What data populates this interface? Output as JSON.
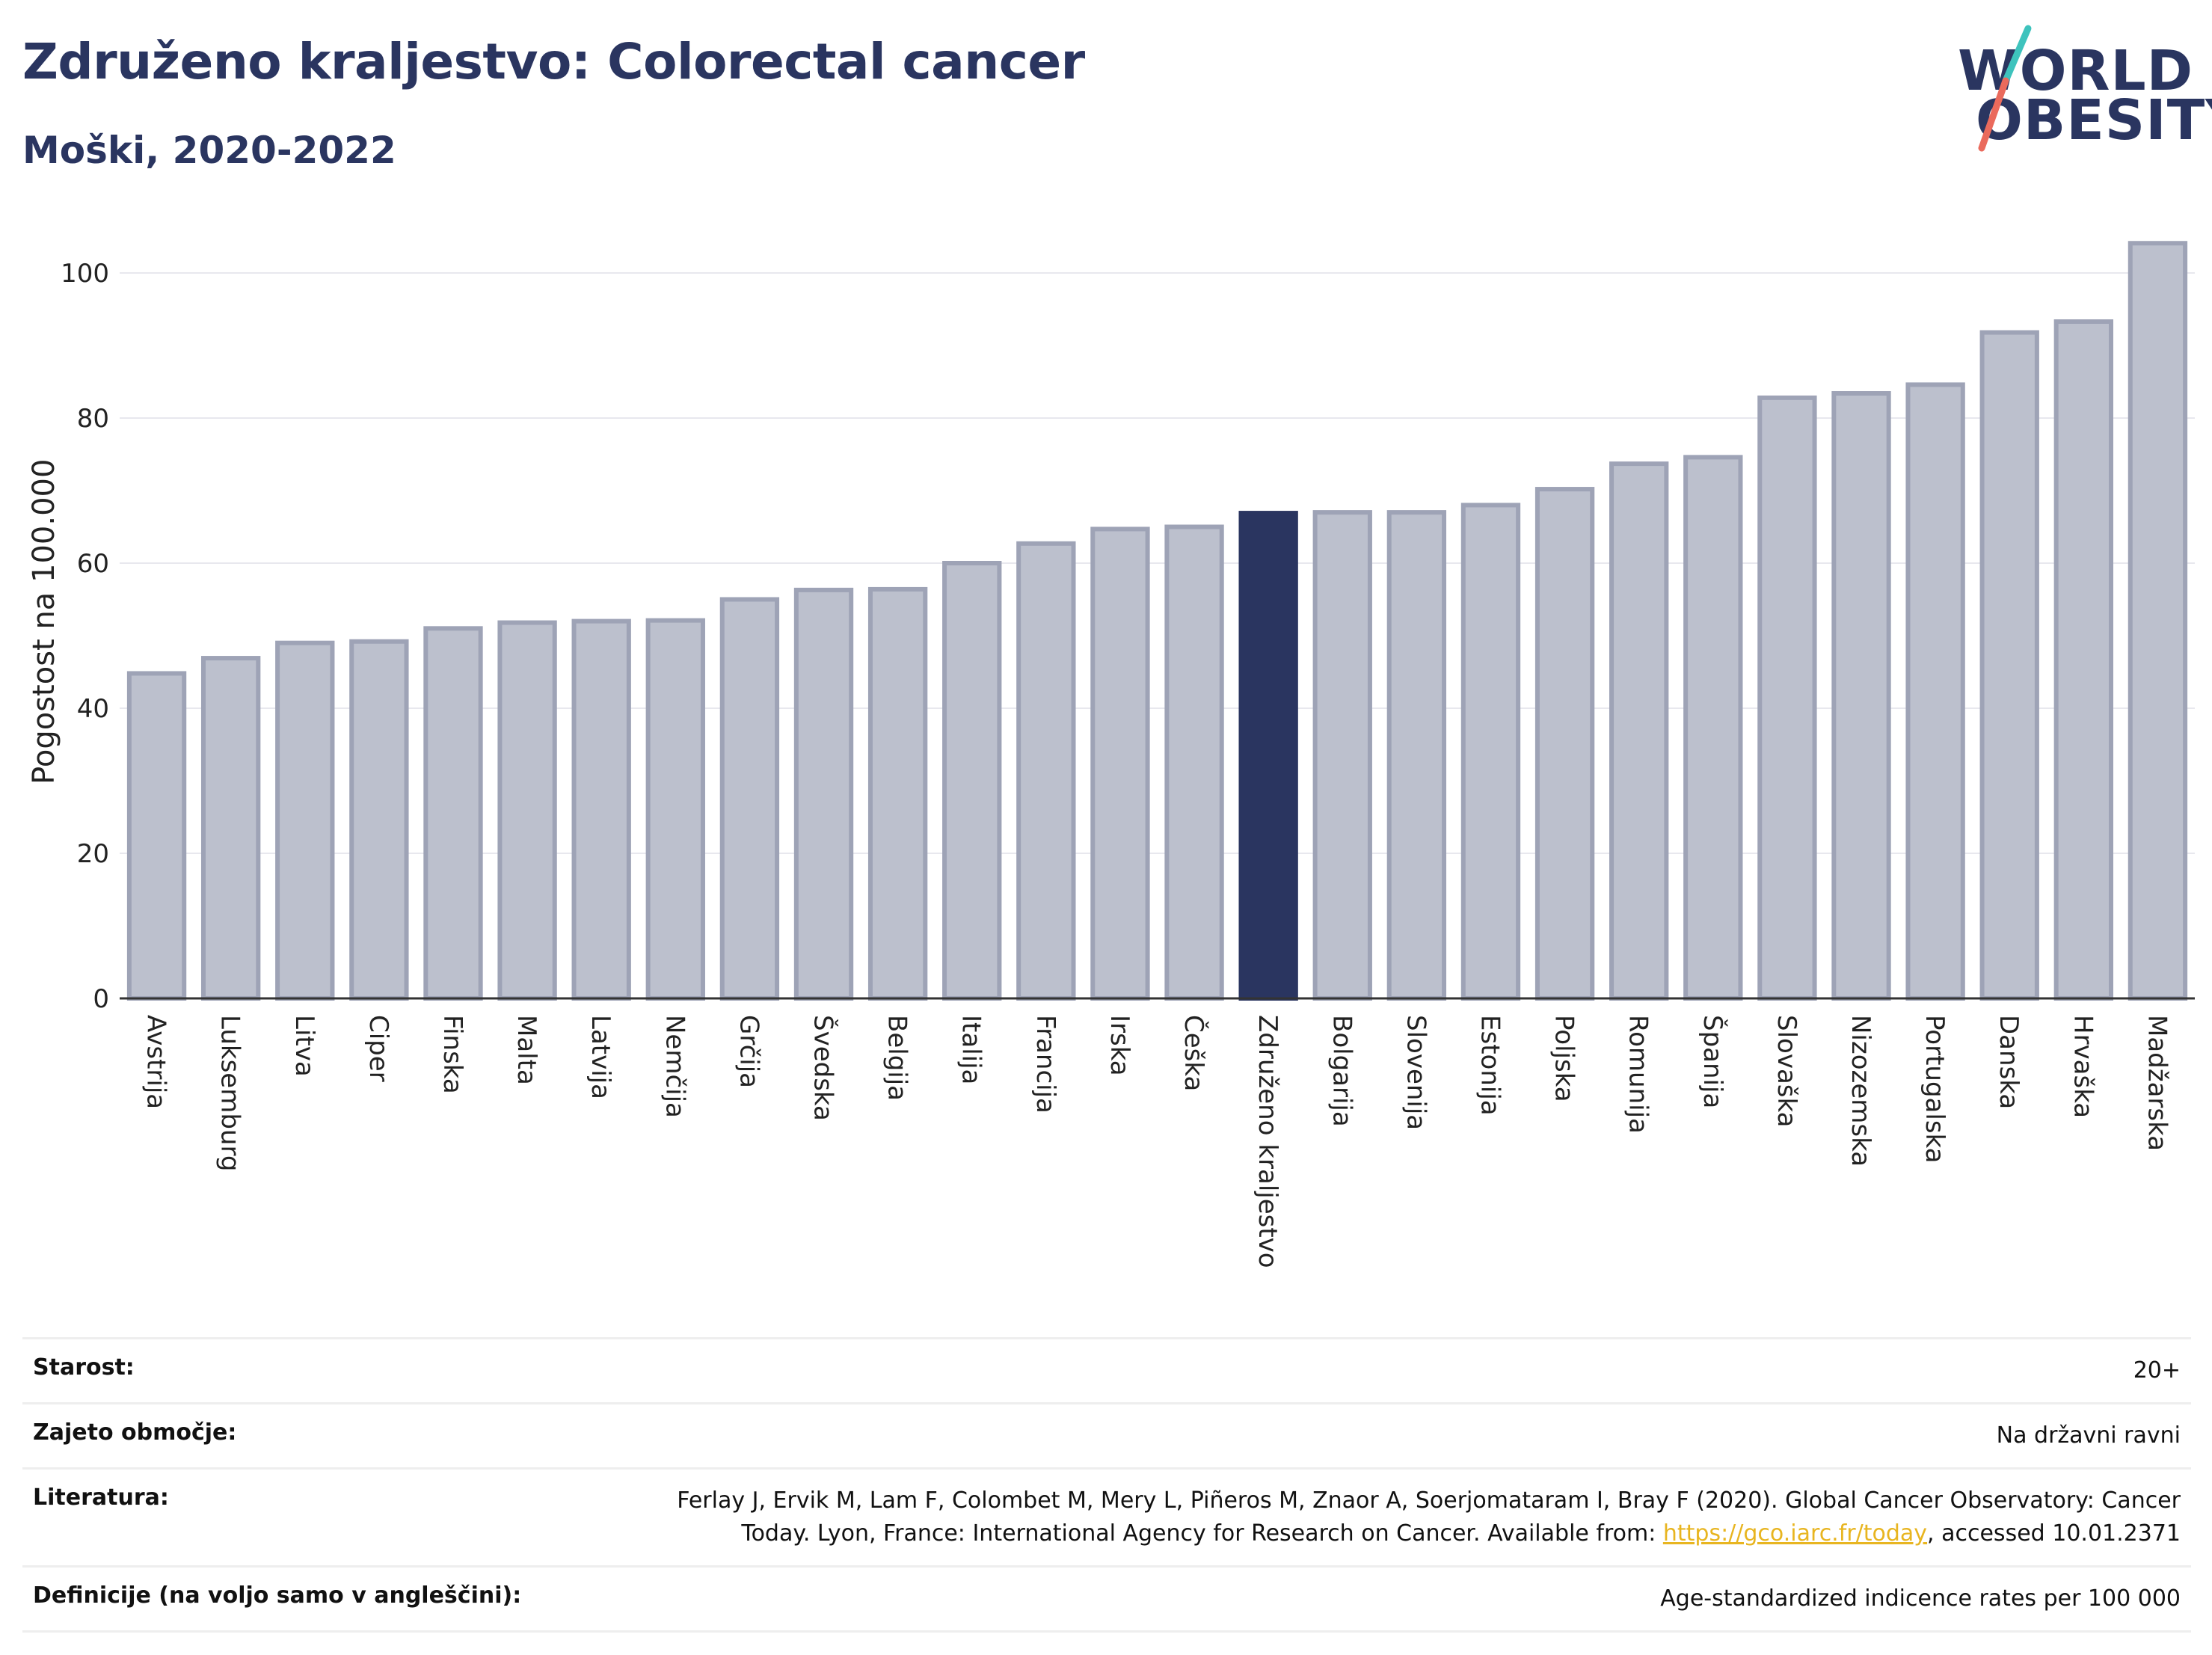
{
  "header": {
    "title": "Združeno kraljestvo: Colorectal cancer",
    "subtitle": "Moški, 2020-2022"
  },
  "logo": {
    "line1": "WORLD",
    "line2": "OBESITY"
  },
  "colors": {
    "bar_default": "#bcc0cd",
    "bar_stroke": "#9ea3b6",
    "bar_highlight": "#2a3560",
    "title": "#2a3560",
    "link": "#e8b520",
    "logo_teal": "#3ec3bd",
    "logo_coral": "#ea6a5c"
  },
  "chart_data": {
    "type": "bar",
    "ylabel": "Pogostost na 100.000",
    "ylim": [
      0,
      108
    ],
    "yticks": [
      0,
      20,
      40,
      60,
      80,
      100
    ],
    "grid": true,
    "highlight": "Združeno kraljestvo",
    "categories": [
      "Avstrija",
      "Luksemburg",
      "Litva",
      "Ciper",
      "Finska",
      "Malta",
      "Latvija",
      "Nemčija",
      "Grčija",
      "Švedska",
      "Belgija",
      "Italija",
      "Francija",
      "Irska",
      "Češka",
      "Združeno kraljestvo",
      "Bolgarija",
      "Slovenija",
      "Estonija",
      "Poljska",
      "Romunija",
      "Španija",
      "Slovaška",
      "Nizozemska",
      "Portugalska",
      "Danska",
      "Hrvaška",
      "Madžarska"
    ],
    "values": [
      44.8,
      46.9,
      49.0,
      49.2,
      51.0,
      51.8,
      52.0,
      52.1,
      55.0,
      56.3,
      56.4,
      60.0,
      62.7,
      64.7,
      65.0,
      66.9,
      67.0,
      67.0,
      68.0,
      70.2,
      73.7,
      74.6,
      82.8,
      83.4,
      84.6,
      91.8,
      93.3,
      104.1
    ]
  },
  "meta": {
    "rows": [
      {
        "label": "Starost:",
        "value": "20+"
      },
      {
        "label": "Zajeto območje:",
        "value": "Na državni ravni"
      },
      {
        "label": "Literatura:",
        "value_line1": "Ferlay J, Ervik M, Lam F, Colombet M, Mery L, Piñeros M, Znaor A, Soerjomataram I, Bray F (2020). Global Cancer Observatory: Cancer",
        "value_line2_pre": "Today. Lyon, France: International Agency for Research on Cancer. Available from: ",
        "link": "https://gco.iarc.fr/today",
        "value_line2_post": ", accessed 10.01.2371"
      },
      {
        "label": "Definicije (na voljo samo v angleščini):",
        "value": "Age-standardized indicence rates per 100 000"
      }
    ]
  }
}
